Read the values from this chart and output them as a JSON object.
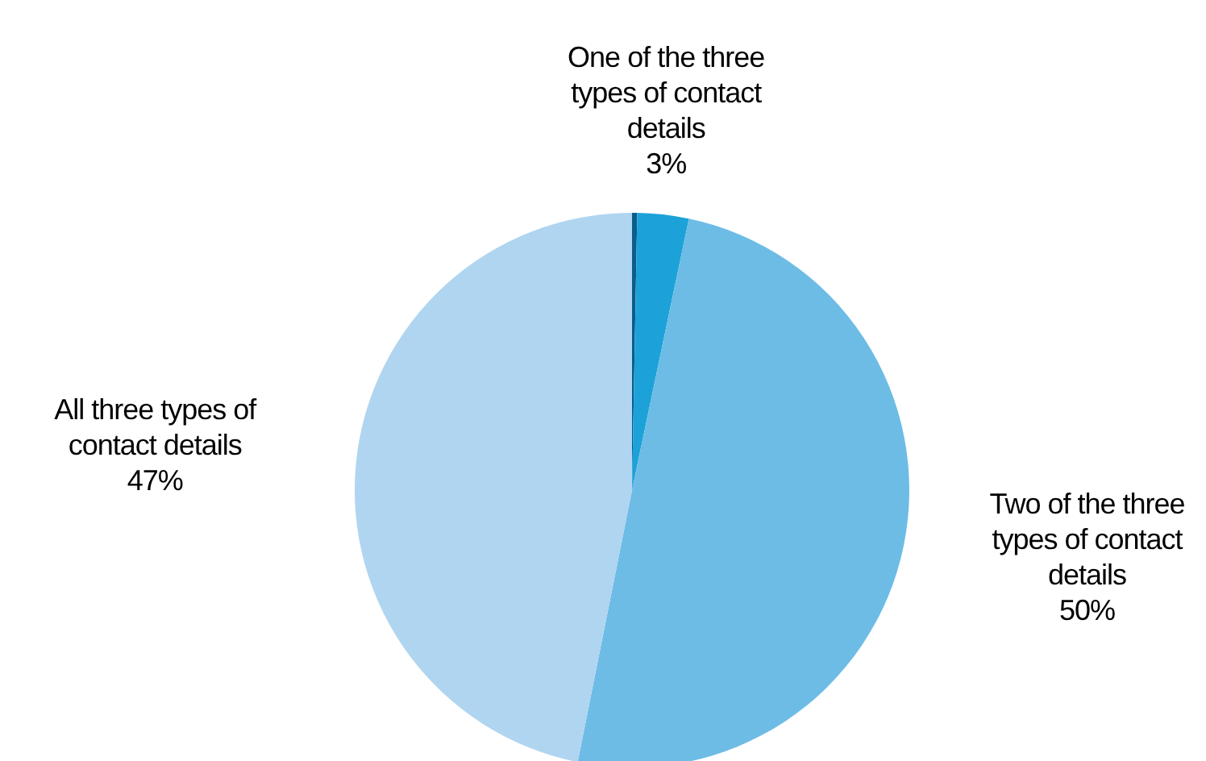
{
  "chart_data": {
    "type": "pie",
    "categories": [
      null,
      "One of the three types of contact details",
      "Two of the three types of contact details",
      "All three types of contact details"
    ],
    "values": [
      0.3,
      3,
      50,
      47
    ],
    "value_labels": [
      null,
      "3%",
      "50%",
      "47%"
    ],
    "colors": [
      "#0b5d8c",
      "#1ca2d9",
      "#6dbce6",
      "#b0d5f0"
    ],
    "legend": false
  }
}
